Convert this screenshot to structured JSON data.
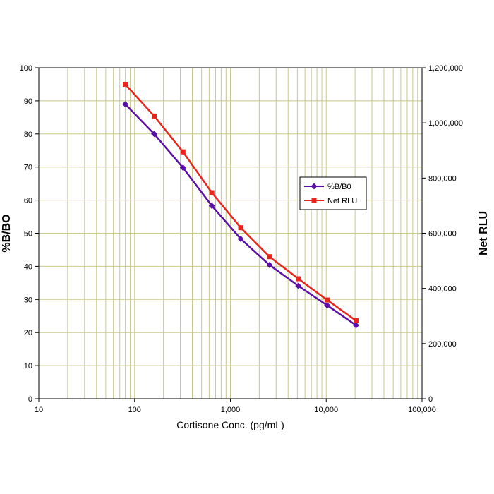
{
  "chart_data": {
    "type": "line",
    "title": "",
    "xlabel": "Cortisone Conc. (pg/mL)",
    "ylabel": "%B/BO",
    "y2label": "Net RLU",
    "x_scale": "log",
    "xlim": [
      10,
      100000
    ],
    "ylim": [
      0,
      100
    ],
    "y2lim": [
      0,
      1200000
    ],
    "grid": true,
    "legend_position": "right",
    "x_ticks": [
      "10",
      "100",
      "1,000",
      "10,000",
      "100,000"
    ],
    "y_ticks": [
      "0",
      "10",
      "20",
      "30",
      "40",
      "50",
      "60",
      "70",
      "80",
      "90",
      "100"
    ],
    "y2_ticks": [
      "0",
      "200,000",
      "400,000",
      "600,000",
      "800,000",
      "1,000,000",
      "1,200,000"
    ],
    "x": [
      80,
      160,
      320,
      640,
      1280,
      2560,
      5120,
      10240,
      20480
    ],
    "series": [
      {
        "name": "%B/B0",
        "axis": "left",
        "color": "#5b0fa8",
        "marker": "diamond",
        "values": [
          89,
          80,
          69.8,
          58.3,
          48.3,
          40.4,
          34.1,
          28.2,
          22.2
        ]
      },
      {
        "name": "Net RLU",
        "axis": "right",
        "color": "#e8241c",
        "marker": "square",
        "values": [
          1140000,
          1025000,
          895000,
          747000,
          620000,
          515000,
          435000,
          358000,
          283000
        ]
      }
    ]
  },
  "colors": {
    "grid": "#c9c98a",
    "axis": "#000000"
  }
}
